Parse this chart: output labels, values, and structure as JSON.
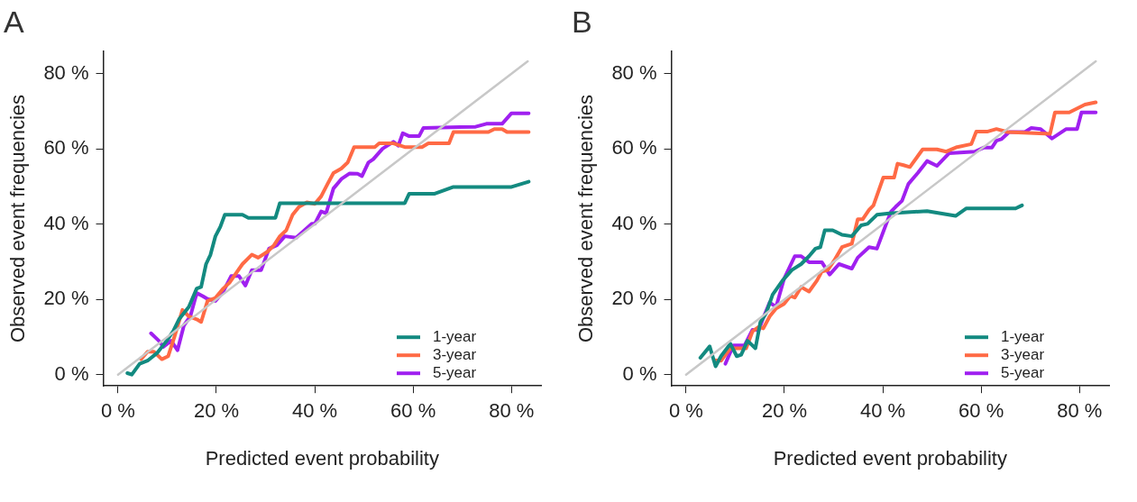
{
  "chart_data": [
    {
      "type": "line",
      "title": "A",
      "xlabel": "Predicted event probability",
      "ylabel": "Observed event frequencies",
      "xlim": [
        -3,
        86
      ],
      "ylim": [
        -3,
        86
      ],
      "xticks": [
        {
          "value": 0,
          "label": "0 %"
        },
        {
          "value": 20,
          "label": "20 %"
        },
        {
          "value": 40,
          "label": "40 %"
        },
        {
          "value": 60,
          "label": "60 %"
        },
        {
          "value": 80,
          "label": "80 %"
        }
      ],
      "yticks": [
        {
          "value": 0,
          "label": "0 %"
        },
        {
          "value": 20,
          "label": "20 %"
        },
        {
          "value": 40,
          "label": "40 %"
        },
        {
          "value": 60,
          "label": "60 %"
        },
        {
          "value": 80,
          "label": "80 %"
        }
      ],
      "grid": false,
      "legend": "bottom right",
      "marker": "none",
      "line_style": "solid",
      "series": [
        {
          "color": "#c8c8c8",
          "x": [
            0,
            83.3
          ],
          "values": [
            0,
            83.3
          ]
        },
        {
          "name": "1-year",
          "color": "#138a80",
          "x": [
            1.9,
            2.8,
            4.4,
            6,
            7.9,
            9.9,
            11.2,
            12.4,
            14.4,
            16,
            16.9,
            17.9,
            18.8,
            19.8,
            20.8,
            21.7,
            25.3,
            26.5,
            32,
            32.9,
            41.9,
            58.3,
            59.2,
            64.4,
            68.2,
            80,
            83.5
          ],
          "values": [
            0.4,
            0,
            2.9,
            3.7,
            5.7,
            9,
            11.5,
            14.7,
            18,
            22.9,
            23.3,
            29.4,
            31.9,
            36.8,
            39.3,
            42.5,
            42.5,
            41.7,
            41.7,
            45.6,
            45.6,
            45.6,
            48.1,
            48.1,
            49.9,
            49.9,
            51.3
          ]
        },
        {
          "name": "3-year",
          "color": "#ff6a45",
          "x": [
            4.7,
            6,
            7.3,
            8.9,
            10.2,
            11.5,
            13.1,
            14.4,
            16,
            16.9,
            18.2,
            19.8,
            21.4,
            22.7,
            24,
            25.3,
            27.2,
            28.5,
            30.4,
            31.7,
            32.9,
            34.2,
            35.5,
            36.8,
            38.4,
            40,
            41.3,
            42.6,
            43.8,
            45.4,
            46.7,
            48,
            52.2,
            53.1,
            56,
            58.3,
            61.8,
            63.1,
            67.3,
            68.2,
            75.3,
            76.5,
            78.1,
            79.1,
            83.5
          ],
          "values": [
            4.1,
            6.1,
            6.1,
            4.1,
            4.9,
            10.2,
            17.2,
            15.5,
            14.7,
            14,
            19.6,
            20.4,
            22.9,
            24.5,
            27,
            29.4,
            31.9,
            31.1,
            32.7,
            34.4,
            36.8,
            38.4,
            42.5,
            44.6,
            45.8,
            45.4,
            47.4,
            50.7,
            53.6,
            54.8,
            56.4,
            60.5,
            60.5,
            61.5,
            61.5,
            60.5,
            60.5,
            61.5,
            61.5,
            64.5,
            64.5,
            65.3,
            65.3,
            64.5,
            64.5
          ]
        },
        {
          "name": "5-year",
          "color": "#a020f0",
          "x": [
            6.7,
            8.3,
            9.2,
            10.8,
            12.1,
            13.4,
            14.7,
            16,
            17.2,
            18.2,
            19.8,
            21.4,
            23,
            24.6,
            25.9,
            27.2,
            29.1,
            30.7,
            32.3,
            33.9,
            36.2,
            39.4,
            40,
            41.3,
            42.3,
            43.8,
            45.4,
            47.1,
            48.7,
            49.6,
            50.9,
            51.9,
            53.8,
            56,
            57,
            57.9,
            59.2,
            61.2,
            62.1,
            72.7,
            74.9,
            78.1,
            80,
            83.5
          ],
          "values": [
            11,
            9,
            7.4,
            9,
            6.5,
            13.1,
            15.5,
            21.7,
            20.9,
            20.1,
            19.6,
            22.1,
            26.2,
            26.2,
            23.7,
            27.8,
            27.8,
            33.5,
            34.4,
            36.8,
            36.4,
            40.1,
            40.1,
            43.4,
            42.9,
            49.5,
            52,
            53.5,
            53.4,
            52.8,
            56.4,
            57.3,
            60.1,
            61.9,
            60.9,
            64.2,
            63.4,
            63.4,
            65.6,
            65.9,
            66.7,
            66.7,
            69.5,
            69.5
          ]
        }
      ]
    },
    {
      "type": "line",
      "title": "B",
      "xlabel": "Predicted event probability",
      "ylabel": "Observed event frequencies",
      "xlim": [
        -3,
        86
      ],
      "ylim": [
        -3,
        86
      ],
      "xticks": [
        {
          "value": 0,
          "label": "0 %"
        },
        {
          "value": 20,
          "label": "20 %"
        },
        {
          "value": 40,
          "label": "40 %"
        },
        {
          "value": 60,
          "label": "60 %"
        },
        {
          "value": 80,
          "label": "80 %"
        }
      ],
      "yticks": [
        {
          "value": 0,
          "label": "0 %"
        },
        {
          "value": 20,
          "label": "20 %"
        },
        {
          "value": 40,
          "label": "40 %"
        },
        {
          "value": 60,
          "label": "60 %"
        },
        {
          "value": 80,
          "label": "80 %"
        }
      ],
      "grid": false,
      "legend": "bottom right",
      "marker": "none",
      "line_style": "solid",
      "series": [
        {
          "color": "#c8c8c8",
          "x": [
            0,
            83.3
          ],
          "values": [
            0,
            83.3
          ]
        },
        {
          "name": "1-year",
          "color": "#138a80",
          "x": [
            2.9,
            4.8,
            6,
            7.1,
            9,
            10.3,
            11.2,
            12.5,
            14.1,
            15.1,
            16.3,
            17.6,
            19.6,
            21.5,
            23.4,
            25,
            26.3,
            27.3,
            28.2,
            29.8,
            31.7,
            33.7,
            35.6,
            36.9,
            38.8,
            41.3,
            49,
            54.8,
            57,
            67,
            68.3
          ],
          "values": [
            4.5,
            7.5,
            2.2,
            4.9,
            8.2,
            4.9,
            5.3,
            9,
            7,
            13.9,
            16.4,
            21.3,
            25,
            27.8,
            29.4,
            31.5,
            33.5,
            33.9,
            38.4,
            38.4,
            37.2,
            36.8,
            39.7,
            40.1,
            42.5,
            42.9,
            43.5,
            42.2,
            44.2,
            44.2,
            45
          ]
        },
        {
          "name": "3-year",
          "color": "#ff6a45",
          "x": [
            5.8,
            7.1,
            9,
            10.6,
            12.2,
            13.5,
            14.8,
            15.7,
            17,
            18.3,
            19.9,
            21.2,
            22.1,
            23.4,
            25,
            26.6,
            27.6,
            28.8,
            30.1,
            31.7,
            33.7,
            34.9,
            35.9,
            37.2,
            38.1,
            40.1,
            41.3,
            42.3,
            43,
            44.2,
            45.5,
            48.1,
            51,
            52.9,
            55.1,
            58,
            59,
            61.2,
            63.1,
            65.4,
            74,
            75,
            77.9,
            81.1,
            83.3
          ],
          "values": [
            3.8,
            3.7,
            7,
            7,
            7,
            11.5,
            12.7,
            12.3,
            15.5,
            17.6,
            18.8,
            20.9,
            20.5,
            23.3,
            22.1,
            25,
            27.4,
            27.8,
            30.3,
            33.9,
            34.8,
            41.3,
            41.3,
            43.8,
            45,
            52.4,
            52.4,
            52.4,
            56.1,
            55.7,
            55.2,
            59.9,
            59.9,
            59.3,
            60.5,
            61.3,
            64.6,
            64.6,
            65.3,
            64.5,
            64,
            69.7,
            69.7,
            71.8,
            72.4
          ]
        },
        {
          "name": "5-year",
          "color": "#a020f0",
          "x": [
            8,
            9.6,
            11.9,
            13.5,
            14.8,
            15.7,
            17,
            18.3,
            19.9,
            22.1,
            23.4,
            25,
            27.6,
            29.2,
            31.1,
            33.7,
            34.9,
            37.2,
            38.8,
            40.7,
            41.7,
            42.6,
            43.9,
            45.2,
            47.1,
            49,
            51,
            53.5,
            58.7,
            60.6,
            62.2,
            63.1,
            64.1,
            65.7,
            68.9,
            70.2,
            72.1,
            74.4,
            77.3,
            79.5,
            80.4,
            83.3
          ],
          "values": [
            2.9,
            7.8,
            7.8,
            11.9,
            11.9,
            15.1,
            19.2,
            18,
            25.4,
            31.5,
            31.5,
            29.9,
            29.9,
            26.6,
            29.4,
            28.2,
            31.1,
            33.9,
            33.5,
            40.1,
            43.4,
            44.6,
            46.2,
            50.7,
            53.6,
            56.8,
            55.5,
            58.9,
            59.3,
            60.4,
            60.4,
            62.2,
            62.6,
            64.5,
            64.5,
            65.6,
            65.3,
            62.8,
            65.3,
            65.3,
            69.7,
            69.7
          ]
        }
      ]
    }
  ]
}
